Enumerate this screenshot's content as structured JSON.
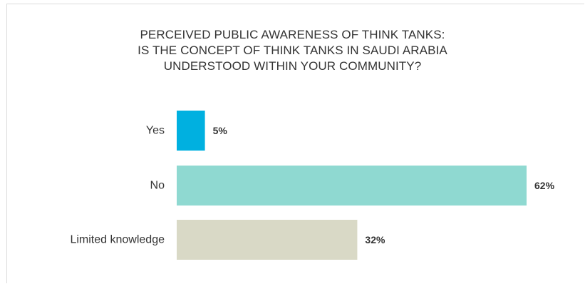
{
  "chart_data": {
    "type": "bar",
    "orientation": "horizontal",
    "title_lines": [
      "PERCEIVED PUBLIC AWARENESS OF THINK TANKS:",
      "IS THE CONCEPT OF THINK TANKS IN SAUDI ARABIA",
      "UNDERSTOOD WITHIN YOUR COMMUNITY?"
    ],
    "categories": [
      "Yes",
      "No",
      "Limited knowledge"
    ],
    "values": [
      5,
      62,
      32
    ],
    "value_labels": [
      "5%",
      "62%",
      "32%"
    ],
    "colors": [
      "#00b0e0",
      "#8fd9d1",
      "#d9d9c6"
    ],
    "xlim": [
      0,
      62
    ],
    "grid": false,
    "legend": "none"
  }
}
